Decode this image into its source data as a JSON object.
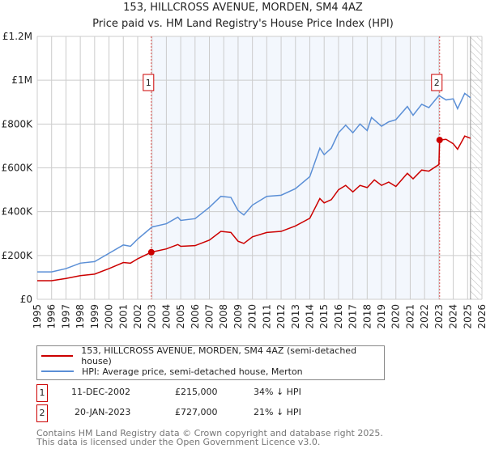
{
  "chart_data": {
    "type": "line",
    "title": "153, HILLCROSS AVENUE, MORDEN, SM4 4AZ",
    "subtitle": "Price paid vs. HM Land Registry's House Price Index (HPI)",
    "xlim": [
      1995,
      2026
    ],
    "ylim": [
      0,
      1200000
    ],
    "x_ticks": [
      "1995",
      "1996",
      "1997",
      "1998",
      "1999",
      "2000",
      "2001",
      "2002",
      "2003",
      "2004",
      "2005",
      "2006",
      "2007",
      "2008",
      "2009",
      "2010",
      "2011",
      "2012",
      "2013",
      "2014",
      "2015",
      "2016",
      "2017",
      "2018",
      "2019",
      "2020",
      "2021",
      "2022",
      "2023",
      "2024",
      "2025",
      "2026"
    ],
    "y_ticks": [
      {
        "v": 0,
        "l": "£0"
      },
      {
        "v": 200000,
        "l": "£200K"
      },
      {
        "v": 400000,
        "l": "£400K"
      },
      {
        "v": 600000,
        "l": "£600K"
      },
      {
        "v": 800000,
        "l": "£800K"
      },
      {
        "v": 1000000,
        "l": "£1M"
      },
      {
        "v": 1200000,
        "l": "£1.2M"
      }
    ],
    "grid": true,
    "shaded_range": [
      2002.95,
      2023.05
    ],
    "forecast_from": 2025.2,
    "series": [
      {
        "name": "153, HILLCROSS AVENUE, MORDEN, SM4 4AZ (semi-detached house)",
        "color": "#cc0000",
        "x": [
          1995,
          1996,
          1997,
          1998,
          1999,
          2000,
          2001,
          2001.5,
          2002,
          2002.95,
          2004,
          2004.8,
          2005,
          2006,
          2007,
          2007.8,
          2008.5,
          2009,
          2009.4,
          2010,
          2011,
          2012,
          2013,
          2014,
          2014.7,
          2015,
          2015.5,
          2016,
          2016.5,
          2017,
          2017.5,
          2018,
          2018.5,
          2019,
          2019.5,
          2020,
          2020.8,
          2021.2,
          2021.8,
          2022.3,
          2023.0,
          2023.05,
          2023.5,
          2024,
          2024.3,
          2024.8,
          2025.2
        ],
        "y": [
          85000,
          85000,
          95000,
          108000,
          115000,
          140000,
          168000,
          165000,
          185000,
          215000,
          230000,
          250000,
          242000,
          245000,
          270000,
          310000,
          305000,
          265000,
          255000,
          285000,
          305000,
          310000,
          335000,
          370000,
          460000,
          440000,
          455000,
          500000,
          520000,
          490000,
          520000,
          510000,
          545000,
          520000,
          535000,
          515000,
          575000,
          550000,
          590000,
          585000,
          615000,
          727000,
          730000,
          710000,
          685000,
          745000,
          735000
        ]
      },
      {
        "name": "HPI: Average price, semi-detached house, Merton",
        "color": "#5b8fd6",
        "x": [
          1995,
          1996,
          1997,
          1998,
          1999,
          2000,
          2001,
          2001.5,
          2002,
          2003,
          2004,
          2004.8,
          2005,
          2006,
          2007,
          2007.8,
          2008.5,
          2009,
          2009.4,
          2010,
          2011,
          2012,
          2013,
          2014,
          2014.7,
          2015,
          2015.5,
          2016,
          2016.5,
          2017,
          2017.5,
          2018,
          2018.3,
          2019,
          2019.5,
          2020,
          2020.8,
          2021.2,
          2021.8,
          2022.3,
          2023,
          2023.5,
          2024,
          2024.3,
          2024.8,
          2025.2
        ],
        "y": [
          125000,
          125000,
          140000,
          165000,
          172000,
          210000,
          248000,
          242000,
          275000,
          330000,
          345000,
          375000,
          360000,
          368000,
          420000,
          470000,
          465000,
          405000,
          385000,
          430000,
          470000,
          475000,
          505000,
          560000,
          690000,
          660000,
          690000,
          760000,
          795000,
          760000,
          800000,
          770000,
          830000,
          790000,
          810000,
          820000,
          880000,
          840000,
          890000,
          875000,
          930000,
          910000,
          915000,
          870000,
          940000,
          920000
        ]
      }
    ],
    "sales": [
      {
        "label": "1",
        "x": 2002.95,
        "y": 215000
      },
      {
        "label": "2",
        "x": 2023.05,
        "y": 727000
      }
    ]
  },
  "table": [
    {
      "num": "1",
      "date": "11-DEC-2002",
      "price": "£215,000",
      "hpi": "34% ↓ HPI"
    },
    {
      "num": "2",
      "date": "20-JAN-2023",
      "price": "£727,000",
      "hpi": "21% ↓ HPI"
    }
  ],
  "footer": {
    "line1": "Contains HM Land Registry data © Crown copyright and database right 2025.",
    "line2": "This data is licensed under the Open Government Licence v3.0."
  }
}
